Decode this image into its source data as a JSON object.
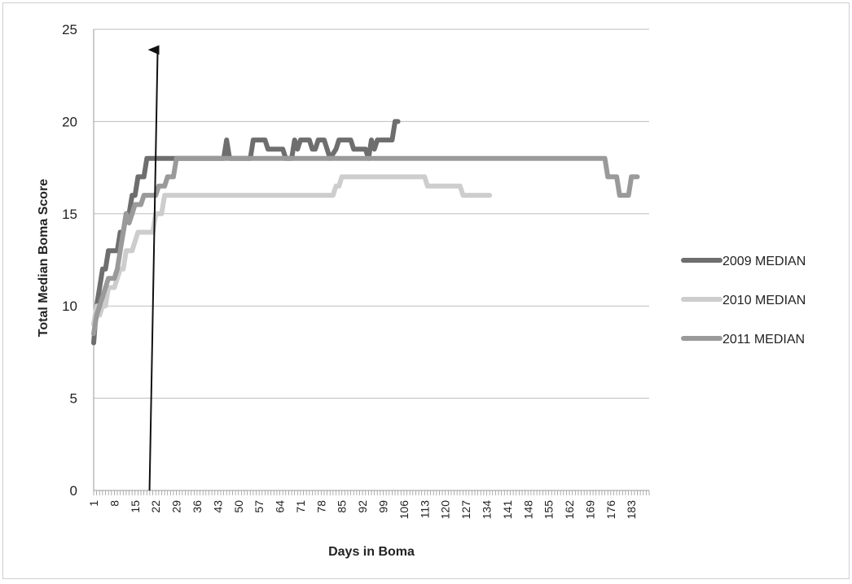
{
  "chart_data": {
    "type": "line",
    "title": "",
    "xlabel": "Days in Boma",
    "ylabel": "Total Median Boma Score",
    "xlim": [
      1,
      189
    ],
    "ylim": [
      0,
      25
    ],
    "y_ticks": [
      0,
      5,
      10,
      15,
      20,
      25
    ],
    "x_tick_labels": [
      1,
      8,
      15,
      22,
      29,
      36,
      43,
      50,
      57,
      64,
      71,
      78,
      85,
      92,
      99,
      106,
      113,
      120,
      127,
      134,
      141,
      148,
      155,
      162,
      169,
      176,
      183
    ],
    "grid": "horizontal",
    "legend": "right",
    "annotation": {
      "type": "arrow",
      "x": 21,
      "from_y": 0,
      "to_y": 24.5
    },
    "colors": {
      "2009 MEDIAN": "#6e6e6e",
      "2010 MEDIAN": "#cdcdcd",
      "2011 MEDIAN": "#9a9a9a",
      "grid": "#bdbdbd",
      "arrow": "#111111"
    },
    "series": [
      {
        "name": "2009 MEDIAN",
        "points": [
          [
            1,
            8
          ],
          [
            2,
            10
          ],
          [
            3,
            11
          ],
          [
            4,
            12
          ],
          [
            5,
            12
          ],
          [
            6,
            13
          ],
          [
            9,
            13
          ],
          [
            10,
            14
          ],
          [
            11,
            14
          ],
          [
            12,
            15
          ],
          [
            13,
            15
          ],
          [
            14,
            16
          ],
          [
            15,
            16
          ],
          [
            16,
            17
          ],
          [
            18,
            17
          ],
          [
            19,
            18
          ],
          [
            45,
            18
          ],
          [
            46,
            19
          ],
          [
            47,
            18
          ],
          [
            54,
            18
          ],
          [
            55,
            19
          ],
          [
            59,
            19
          ],
          [
            60,
            18.5
          ],
          [
            65,
            18.5
          ],
          [
            66,
            18
          ],
          [
            68,
            18
          ],
          [
            69,
            19
          ],
          [
            70,
            18.5
          ],
          [
            71,
            19
          ],
          [
            74,
            19
          ],
          [
            75,
            18.5
          ],
          [
            76,
            18.5
          ],
          [
            77,
            19
          ],
          [
            79,
            19
          ],
          [
            80,
            18.5
          ],
          [
            81,
            18
          ],
          [
            83,
            18.5
          ],
          [
            84,
            19
          ],
          [
            88,
            19
          ],
          [
            89,
            18.5
          ],
          [
            93,
            18.5
          ],
          [
            94,
            18
          ],
          [
            95,
            19
          ],
          [
            96,
            18.5
          ],
          [
            97,
            19
          ],
          [
            102,
            19
          ],
          [
            103,
            20
          ],
          [
            104,
            20
          ]
        ]
      },
      {
        "name": "2010 MEDIAN",
        "points": [
          [
            1,
            9
          ],
          [
            2,
            10
          ],
          [
            3,
            9.5
          ],
          [
            4,
            10
          ],
          [
            5,
            10
          ],
          [
            6,
            11
          ],
          [
            7,
            11
          ],
          [
            8,
            11
          ],
          [
            9,
            11.5
          ],
          [
            10,
            12
          ],
          [
            11,
            12
          ],
          [
            12,
            13
          ],
          [
            14,
            13
          ],
          [
            15,
            13.5
          ],
          [
            16,
            14
          ],
          [
            21,
            14
          ],
          [
            22,
            15
          ],
          [
            24,
            15
          ],
          [
            25,
            16
          ],
          [
            82,
            16
          ],
          [
            83,
            16.5
          ],
          [
            84,
            16.5
          ],
          [
            85,
            17
          ],
          [
            113,
            17
          ],
          [
            114,
            16.5
          ],
          [
            125,
            16.5
          ],
          [
            126,
            16
          ],
          [
            135,
            16
          ]
        ]
      },
      {
        "name": "2011 MEDIAN",
        "points": [
          [
            1,
            8.5
          ],
          [
            2,
            9.5
          ],
          [
            3,
            10
          ],
          [
            4,
            10.5
          ],
          [
            5,
            11
          ],
          [
            6,
            11.5
          ],
          [
            8,
            11.5
          ],
          [
            9,
            12
          ],
          [
            10,
            13
          ],
          [
            11,
            14
          ],
          [
            12,
            15
          ],
          [
            13,
            14.5
          ],
          [
            14,
            15
          ],
          [
            15,
            15.5
          ],
          [
            17,
            15.5
          ],
          [
            18,
            16
          ],
          [
            22,
            16
          ],
          [
            23,
            16.5
          ],
          [
            25,
            16.5
          ],
          [
            26,
            17
          ],
          [
            28,
            17
          ],
          [
            29,
            18
          ],
          [
            174,
            18
          ],
          [
            175,
            17
          ],
          [
            178,
            17
          ],
          [
            179,
            16
          ],
          [
            182,
            16
          ],
          [
            183,
            17
          ],
          [
            185,
            17
          ]
        ]
      }
    ]
  }
}
